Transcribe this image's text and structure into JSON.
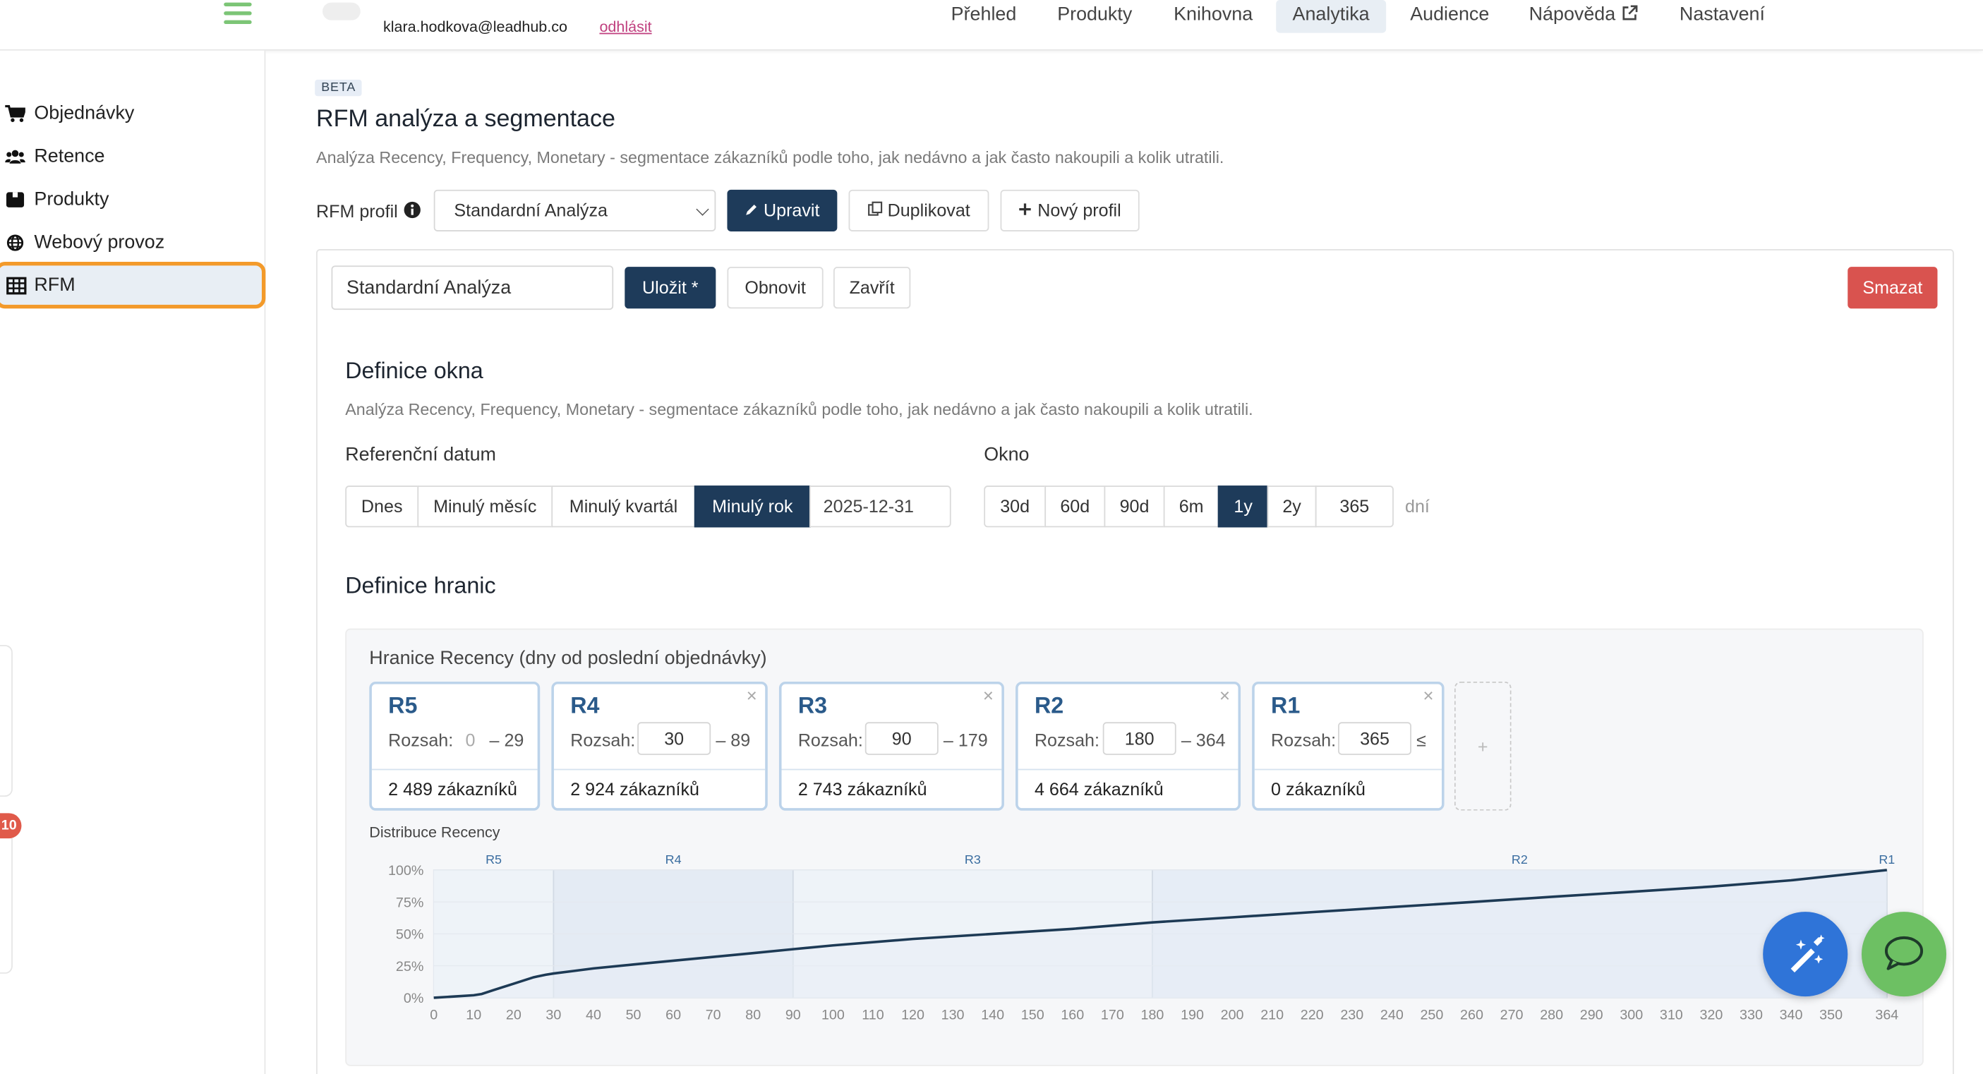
{
  "topbar": {
    "user_email": "klara.hodkova@leadhub.co",
    "logout_label": "odhlásit",
    "nav": [
      {
        "label": "Přehled"
      },
      {
        "label": "Produkty"
      },
      {
        "label": "Knihovna"
      },
      {
        "label": "Analytika",
        "active": true
      },
      {
        "label": "Audience"
      },
      {
        "label": "Nápověda",
        "external_icon": "external-link-icon"
      },
      {
        "label": "Nastavení"
      }
    ]
  },
  "sidebar": {
    "items": [
      {
        "label": "Objednávky",
        "icon": "cart-icon"
      },
      {
        "label": "Retence",
        "icon": "users-icon"
      },
      {
        "label": "Produkty",
        "icon": "box-icon"
      },
      {
        "label": "Webový provoz",
        "icon": "globe-icon"
      },
      {
        "label": "RFM",
        "icon": "table-icon",
        "active": true
      }
    ],
    "notification_badge": "10"
  },
  "page": {
    "badge": "BETA",
    "title": "RFM analýza a segmentace",
    "subtitle": "Analýza Recency, Frequency, Monetary - segmentace zákazníků podle toho, jak nedávno a jak často nakoupili a kolik utratili."
  },
  "profile_bar": {
    "label": "RFM profil",
    "selected": "Standardní Analýza",
    "edit_label": "Upravit",
    "duplicate_label": "Duplikovat",
    "new_label": "Nový profil"
  },
  "editor": {
    "name_value": "Standardní Analýza",
    "save_label": "Uložit *",
    "refresh_label": "Obnovit",
    "close_label": "Zavřít",
    "delete_label": "Smazat"
  },
  "window_def": {
    "title": "Definice okna",
    "subtitle": "Analýza Recency, Frequency, Monetary - segmentace zákazníků podle toho, jak nedávno a jak často nakoupili a kolik utratili.",
    "reference_label": "Referenční datum",
    "reference_options": [
      "Dnes",
      "Minulý měsíc",
      "Minulý kvartál",
      "Minulý rok"
    ],
    "reference_selected": "Minulý rok",
    "reference_date": "2025-12-31",
    "window_label": "Okno",
    "window_options": [
      "30d",
      "60d",
      "90d",
      "6m",
      "1y",
      "2y"
    ],
    "window_selected": "1y",
    "window_days": "365",
    "window_unit": "dní"
  },
  "bounds_def": {
    "title": "Definice hranic",
    "recency_title": "Hranice Recency (dny od poslední objednávky)",
    "range_label": "Rozsah:",
    "cards": [
      {
        "name": "R5",
        "from": "0",
        "to": "– 29",
        "count": "2 489 zákazníků"
      },
      {
        "name": "R4",
        "from": "30",
        "to": "– 89",
        "count": "2 924 zákazníků"
      },
      {
        "name": "R3",
        "from": "90",
        "to": "– 179",
        "count": "2 743 zákazníků"
      },
      {
        "name": "R2",
        "from": "180",
        "to": "– 364",
        "count": "4 664 zákazníků"
      },
      {
        "name": "R1",
        "from": "365",
        "to": "≤",
        "count": "0 zákazníků"
      }
    ],
    "add_label": "+"
  },
  "chart_data": {
    "type": "area",
    "title": "Distribuce Recency",
    "xlim": [
      0,
      364
    ],
    "ylim": [
      0,
      100
    ],
    "y_ticks": [
      "0%",
      "25%",
      "50%",
      "75%",
      "100%"
    ],
    "x_ticks": [
      0,
      10,
      20,
      30,
      40,
      50,
      60,
      70,
      80,
      90,
      100,
      110,
      120,
      130,
      140,
      150,
      160,
      170,
      180,
      190,
      200,
      210,
      220,
      230,
      240,
      250,
      260,
      270,
      280,
      290,
      300,
      310,
      320,
      330,
      340,
      350,
      364
    ],
    "bands": [
      {
        "label": "R5",
        "from": 0,
        "to": 30
      },
      {
        "label": "R4",
        "from": 30,
        "to": 90
      },
      {
        "label": "R3",
        "from": 90,
        "to": 180
      },
      {
        "label": "R2",
        "from": 180,
        "to": 364
      },
      {
        "label": "R1",
        "from": 364,
        "to": 364
      }
    ],
    "series": [
      {
        "x": [
          0,
          5,
          10,
          12,
          15,
          20,
          25,
          28,
          30,
          35,
          40,
          50,
          60,
          70,
          80,
          90,
          100,
          120,
          140,
          160,
          180,
          200,
          220,
          240,
          260,
          280,
          300,
          320,
          340,
          364
        ],
        "y": [
          0,
          1,
          2,
          3,
          6,
          11,
          16,
          18,
          19,
          21,
          23,
          26,
          29,
          32,
          35,
          38,
          41,
          46,
          50,
          54,
          59,
          63,
          67,
          71,
          75,
          79,
          83,
          87,
          92,
          100
        ]
      }
    ],
    "colors": {
      "line": "#1d3a55",
      "fill": "#e8eef6"
    }
  },
  "fabs": [
    {
      "icon": "magic-wand-icon",
      "color": "#2f74d8"
    },
    {
      "icon": "chat-icon",
      "color": "#6dc063"
    }
  ]
}
